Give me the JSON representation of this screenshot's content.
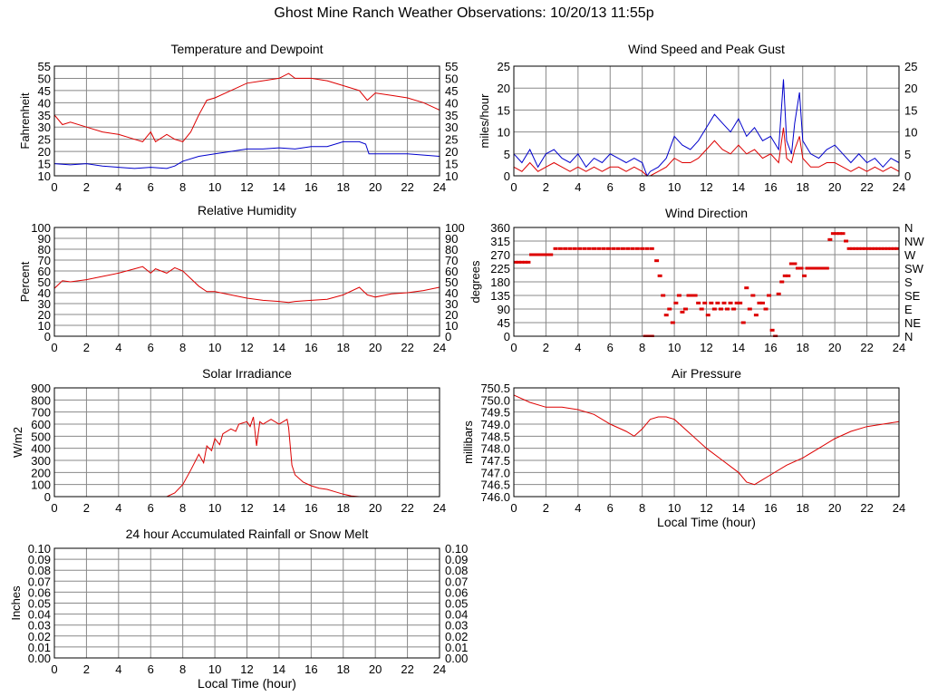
{
  "page_title": "Ghost Mine Ranch Weather Observations: 10/20/13 11:55p",
  "chart_data": [
    {
      "id": "temp",
      "type": "line",
      "title": "Temperature and Dewpoint",
      "ylabel": "Fahrenheit",
      "xlabel": "",
      "xlim": [
        0,
        24
      ],
      "ylim": [
        10,
        55
      ],
      "xticks": [
        0,
        2,
        4,
        6,
        8,
        10,
        12,
        14,
        16,
        18,
        20,
        22,
        24
      ],
      "yticks": [
        10,
        15,
        20,
        25,
        30,
        35,
        40,
        45,
        50,
        55
      ],
      "right_axis": true,
      "grid": true,
      "series": [
        {
          "color": "#dd0000",
          "x": [
            0,
            0.5,
            1,
            2,
            3,
            4,
            5,
            5.5,
            6,
            6.3,
            7,
            7.5,
            8,
            8.5,
            9,
            9.5,
            10,
            11,
            12,
            13,
            14,
            14.6,
            15,
            16,
            17,
            18,
            19,
            19.5,
            20,
            21,
            22,
            23,
            24
          ],
          "y": [
            35,
            31,
            32,
            30,
            28,
            27,
            25,
            24,
            28,
            24,
            27,
            25,
            24,
            28,
            35,
            41,
            42,
            45,
            48,
            49,
            50,
            52,
            50,
            50,
            49,
            47,
            45,
            41,
            44,
            43,
            42,
            40,
            37
          ]
        },
        {
          "color": "#0000cc",
          "x": [
            0,
            1,
            2,
            3,
            4,
            5,
            6,
            7,
            7.5,
            8,
            9,
            10,
            11,
            12,
            13,
            14,
            15,
            16,
            17,
            18,
            19,
            19.4,
            19.6,
            20,
            21,
            22,
            23,
            24
          ],
          "y": [
            15,
            14.5,
            15,
            14,
            13.5,
            13,
            13.5,
            13,
            14,
            16,
            18,
            19,
            20,
            21,
            21,
            21.5,
            21,
            22,
            22,
            24,
            24,
            23,
            19,
            19,
            19,
            19,
            18.5,
            18
          ]
        }
      ]
    },
    {
      "id": "wind",
      "type": "line",
      "title": "Wind Speed and Peak Gust",
      "ylabel": "miles/hour",
      "xlabel": "",
      "xlim": [
        0,
        24
      ],
      "ylim": [
        0,
        25
      ],
      "xticks": [
        0,
        2,
        4,
        6,
        8,
        10,
        12,
        14,
        16,
        18,
        20,
        22,
        24
      ],
      "yticks": [
        0,
        5,
        10,
        15,
        20,
        25
      ],
      "right_axis": true,
      "grid": true,
      "series": [
        {
          "color": "#0000cc",
          "x": [
            0,
            0.5,
            1,
            1.5,
            2,
            2.5,
            3,
            3.5,
            4,
            4.5,
            5,
            5.5,
            6,
            6.5,
            7,
            7.5,
            8,
            8.3,
            8.5,
            9,
            9.5,
            10,
            10.5,
            11,
            11.5,
            12,
            12.5,
            13,
            13.5,
            14,
            14.5,
            15,
            15.5,
            16,
            16.5,
            16.8,
            17,
            17.3,
            17.5,
            17.8,
            18,
            18.5,
            19,
            19.5,
            20,
            20.5,
            21,
            21.5,
            22,
            22.5,
            23,
            23.5,
            24
          ],
          "y": [
            5,
            3,
            6,
            2,
            5,
            6,
            4,
            3,
            5,
            2,
            4,
            3,
            5,
            4,
            3,
            4,
            3,
            0,
            1,
            2,
            4,
            9,
            7,
            6,
            8,
            11,
            14,
            12,
            10,
            13,
            9,
            11,
            8,
            9,
            6,
            22,
            8,
            5,
            12,
            19,
            8,
            5,
            4,
            6,
            7,
            5,
            3,
            5,
            3,
            4,
            2,
            4,
            3
          ]
        },
        {
          "color": "#dd0000",
          "x": [
            0,
            0.5,
            1,
            1.5,
            2,
            2.5,
            3,
            3.5,
            4,
            4.5,
            5,
            5.5,
            6,
            6.5,
            7,
            7.5,
            8,
            8.3,
            8.5,
            9,
            9.5,
            10,
            10.5,
            11,
            11.5,
            12,
            12.5,
            13,
            13.5,
            14,
            14.5,
            15,
            15.5,
            16,
            16.5,
            16.8,
            17,
            17.3,
            17.5,
            17.8,
            18,
            18.5,
            19,
            19.5,
            20,
            20.5,
            21,
            21.5,
            22,
            22.5,
            23,
            23.5,
            24
          ],
          "y": [
            2,
            1,
            3,
            1,
            2,
            3,
            2,
            1,
            2,
            1,
            2,
            1,
            2,
            2,
            1,
            2,
            1,
            0,
            0,
            1,
            2,
            4,
            3,
            3,
            4,
            6,
            8,
            6,
            5,
            7,
            5,
            6,
            4,
            5,
            3,
            11,
            4,
            3,
            6,
            9,
            4,
            2,
            2,
            3,
            3,
            2,
            1,
            2,
            1,
            2,
            1,
            2,
            1
          ]
        }
      ]
    },
    {
      "id": "humidity",
      "type": "line",
      "title": "Relative Humidity",
      "ylabel": "Percent",
      "xlabel": "",
      "xlim": [
        0,
        24
      ],
      "ylim": [
        0,
        100
      ],
      "xticks": [
        0,
        2,
        4,
        6,
        8,
        10,
        12,
        14,
        16,
        18,
        20,
        22,
        24
      ],
      "yticks": [
        0,
        10,
        20,
        30,
        40,
        50,
        60,
        70,
        80,
        90,
        100
      ],
      "right_axis": true,
      "grid": true,
      "series": [
        {
          "color": "#dd0000",
          "x": [
            0,
            0.5,
            1,
            2,
            3,
            4,
            5,
            5.5,
            6,
            6.3,
            7,
            7.5,
            8,
            8.5,
            9,
            9.5,
            10,
            11,
            12,
            13,
            14,
            14.6,
            15,
            16,
            17,
            18,
            19,
            19.5,
            20,
            21,
            22,
            23,
            24
          ],
          "y": [
            44,
            51,
            50,
            52,
            55,
            58,
            62,
            64,
            58,
            62,
            58,
            63,
            60,
            53,
            46,
            41,
            41,
            38,
            35,
            33,
            32,
            31,
            32,
            33,
            34,
            38,
            45,
            38,
            36,
            39,
            40,
            42,
            45
          ]
        }
      ]
    },
    {
      "id": "winddir",
      "type": "scatter",
      "title": "Wind Direction",
      "ylabel": "degrees",
      "xlabel": "",
      "xlim": [
        0,
        24
      ],
      "ylim": [
        0,
        360
      ],
      "xticks": [
        0,
        2,
        4,
        6,
        8,
        10,
        12,
        14,
        16,
        18,
        20,
        22,
        24
      ],
      "yticks": [
        0,
        45,
        90,
        135,
        180,
        225,
        270,
        315,
        360
      ],
      "right_labels": [
        "N",
        "NE",
        "E",
        "SE",
        "S",
        "SW",
        "W",
        "NW",
        "N"
      ],
      "grid": true,
      "series": [
        {
          "color": "#dd0000",
          "x": [
            0.1,
            0.3,
            0.5,
            0.7,
            0.9,
            1.1,
            1.3,
            1.5,
            1.7,
            1.9,
            2.1,
            2.3,
            2.6,
            2.9,
            3.2,
            3.5,
            3.8,
            4.1,
            4.4,
            4.7,
            5.0,
            5.3,
            5.6,
            5.9,
            6.2,
            6.5,
            6.8,
            7.1,
            7.4,
            7.7,
            8.0,
            8.3,
            8.6,
            8.2,
            8.4,
            8.6,
            8.9,
            9.1,
            9.3,
            9.5,
            9.7,
            9.9,
            10.1,
            10.3,
            10.5,
            10.7,
            10.9,
            11.1,
            11.3,
            11.5,
            11.7,
            11.9,
            12.1,
            12.3,
            12.5,
            12.7,
            12.9,
            13.1,
            13.3,
            13.5,
            13.7,
            13.9,
            14.1,
            14.3,
            14.5,
            14.7,
            14.9,
            15.1,
            15.3,
            15.5,
            15.7,
            15.9,
            16.1,
            16.3,
            16.5,
            16.7,
            16.9,
            17.1,
            17.3,
            17.5,
            17.7,
            17.9,
            18.1,
            18.3,
            18.5,
            18.7,
            18.9,
            19.1,
            19.3,
            19.5,
            19.7,
            19.9,
            20.1,
            20.3,
            20.5,
            20.7,
            20.9,
            21.1,
            21.3,
            21.5,
            21.7,
            21.9,
            22.1,
            22.3,
            22.5,
            22.7,
            22.9,
            23.1,
            23.3,
            23.5,
            23.7,
            23.9
          ],
          "y": [
            245,
            245,
            245,
            245,
            245,
            270,
            270,
            270,
            270,
            270,
            270,
            270,
            290,
            290,
            290,
            290,
            290,
            290,
            290,
            290,
            290,
            290,
            290,
            290,
            290,
            290,
            290,
            290,
            290,
            290,
            290,
            290,
            290,
            0,
            0,
            0,
            250,
            200,
            135,
            70,
            90,
            45,
            110,
            135,
            80,
            90,
            135,
            135,
            135,
            110,
            90,
            110,
            70,
            110,
            90,
            110,
            90,
            110,
            90,
            110,
            90,
            110,
            110,
            45,
            160,
            90,
            135,
            70,
            110,
            110,
            90,
            135,
            20,
            0,
            140,
            180,
            200,
            200,
            240,
            240,
            225,
            225,
            200,
            225,
            225,
            225,
            225,
            225,
            225,
            225,
            320,
            340,
            340,
            340,
            340,
            315,
            290,
            290,
            290,
            290,
            290,
            290,
            290,
            290,
            290,
            290,
            290,
            290,
            290,
            290,
            290,
            290
          ]
        }
      ]
    },
    {
      "id": "solar",
      "type": "line",
      "title": "Solar Irradiance",
      "ylabel": "W/m2",
      "xlabel": "",
      "xlim": [
        0,
        24
      ],
      "ylim": [
        0,
        900
      ],
      "xticks": [
        0,
        2,
        4,
        6,
        8,
        10,
        12,
        14,
        16,
        18,
        20,
        22,
        24
      ],
      "yticks": [
        0,
        100,
        200,
        300,
        400,
        500,
        600,
        700,
        800,
        900
      ],
      "right_axis": false,
      "grid": true,
      "series": [
        {
          "color": "#dd0000",
          "x": [
            0,
            6,
            7,
            7.5,
            8,
            8.5,
            9,
            9.3,
            9.5,
            9.8,
            10,
            10.3,
            10.5,
            11,
            11.3,
            11.5,
            12,
            12.2,
            12.4,
            12.6,
            12.8,
            13,
            13.5,
            14,
            14.5,
            14.6,
            14.8,
            15,
            15.5,
            16,
            16.5,
            17,
            17.5,
            18,
            18.5,
            19,
            24
          ],
          "y": [
            0,
            0,
            0,
            30,
            100,
            220,
            350,
            280,
            420,
            380,
            480,
            430,
            520,
            560,
            540,
            600,
            620,
            580,
            660,
            420,
            620,
            600,
            640,
            600,
            640,
            570,
            260,
            180,
            120,
            90,
            70,
            60,
            40,
            20,
            5,
            0,
            0
          ]
        }
      ]
    },
    {
      "id": "pressure",
      "type": "line",
      "title": "Air Pressure",
      "ylabel": "millibars",
      "xlabel": "Local Time (hour)",
      "xlim": [
        0,
        24
      ],
      "ylim": [
        746.0,
        750.5
      ],
      "xticks": [
        0,
        2,
        4,
        6,
        8,
        10,
        12,
        14,
        16,
        18,
        20,
        22,
        24
      ],
      "yticks": [
        746.0,
        746.5,
        747.0,
        747.5,
        748.0,
        748.5,
        749.0,
        749.5,
        750.0,
        750.5
      ],
      "ytick_labels": [
        "746.0",
        "746.5",
        "747.0",
        "747.5",
        "748.0",
        "748.5",
        "749.0",
        "749.5",
        "750.0",
        "750.5"
      ],
      "right_axis": false,
      "grid": true,
      "series": [
        {
          "color": "#dd0000",
          "x": [
            0,
            1,
            2,
            3,
            4,
            5,
            6,
            7,
            7.5,
            8,
            8.5,
            9,
            9.5,
            10,
            11,
            12,
            13,
            14,
            14.5,
            15,
            15.5,
            16,
            17,
            18,
            19,
            20,
            21,
            22,
            23,
            24
          ],
          "y": [
            750.2,
            749.9,
            749.7,
            749.7,
            749.6,
            749.4,
            749.0,
            748.7,
            748.5,
            748.8,
            749.2,
            749.3,
            749.3,
            749.2,
            748.6,
            748.0,
            747.5,
            747.0,
            746.6,
            746.5,
            746.7,
            746.9,
            747.3,
            747.6,
            748.0,
            748.4,
            748.7,
            748.9,
            749.0,
            749.1
          ]
        }
      ]
    },
    {
      "id": "rain",
      "type": "line",
      "title": "24 hour Accumulated Rainfall or Snow Melt",
      "ylabel": "Inches",
      "xlabel": "Local Time (hour)",
      "xlim": [
        0,
        24
      ],
      "ylim": [
        0,
        0.1
      ],
      "xticks": [
        0,
        2,
        4,
        6,
        8,
        10,
        12,
        14,
        16,
        18,
        20,
        22,
        24
      ],
      "yticks": [
        0,
        0.01,
        0.02,
        0.03,
        0.04,
        0.05,
        0.06,
        0.07,
        0.08,
        0.09,
        0.1
      ],
      "ytick_labels": [
        "0.00",
        "0.01",
        "0.02",
        "0.03",
        "0.04",
        "0.05",
        "0.06",
        "0.07",
        "0.08",
        "0.09",
        "0.10"
      ],
      "right_axis": true,
      "grid": true,
      "series": [
        {
          "color": "#dd0000",
          "x": [
            0,
            24
          ],
          "y": [
            0,
            0
          ]
        }
      ]
    }
  ]
}
